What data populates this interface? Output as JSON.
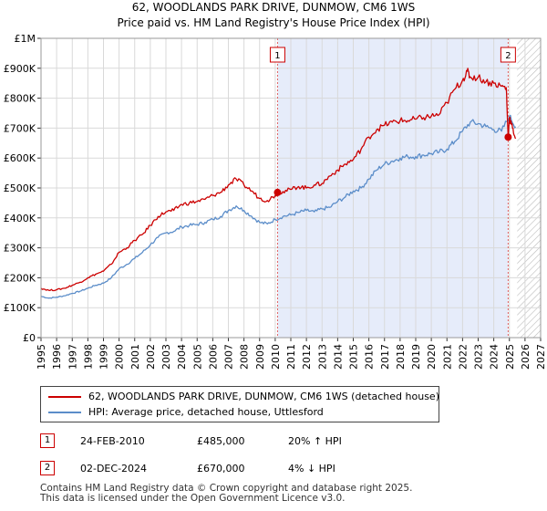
{
  "chart_data": {
    "type": "line",
    "title": "62, WOODLANDS PARK DRIVE, DUNMOW, CM6 1WS",
    "subtitle": "Price paid vs. HM Land Registry's House Price Index (HPI)",
    "xlabel": "",
    "ylabel": "",
    "xlim": [
      1995,
      2027
    ],
    "ylim": [
      0,
      1000000
    ],
    "y_ticks": [
      0,
      100000,
      200000,
      300000,
      400000,
      500000,
      600000,
      700000,
      800000,
      900000,
      1000000
    ],
    "y_tick_labels": [
      "£0",
      "£100K",
      "£200K",
      "£300K",
      "£400K",
      "£500K",
      "£600K",
      "£700K",
      "£800K",
      "£900K",
      "£1M"
    ],
    "x_ticks": [
      1995,
      1996,
      1997,
      1998,
      1999,
      2000,
      2001,
      2002,
      2003,
      2004,
      2005,
      2006,
      2007,
      2008,
      2009,
      2010,
      2011,
      2012,
      2013,
      2014,
      2015,
      2016,
      2017,
      2018,
      2019,
      2020,
      2021,
      2022,
      2023,
      2024,
      2025,
      2026,
      2027
    ],
    "x_tick_labels": [
      "1995",
      "1996",
      "1997",
      "1998",
      "1999",
      "2000",
      "2001",
      "2002",
      "2003",
      "2004",
      "2005",
      "2006",
      "2007",
      "2008",
      "2009",
      "2010",
      "2011",
      "2012",
      "2013",
      "2014",
      "2015",
      "2016",
      "2017",
      "2018",
      "2019",
      "2020",
      "2021",
      "2022",
      "2023",
      "2024",
      "2025",
      "2026",
      "2027"
    ],
    "grid": true,
    "shaded_region": [
      2010.15,
      2024.92
    ],
    "hatched_from": 2025.5,
    "series": [
      {
        "name": "62, WOODLANDS PARK DRIVE, DUNMOW, CM6 1WS (detached house)",
        "color": "#cc0000",
        "x": [
          1995.0,
          1995.5,
          1996.0,
          1996.5,
          1997.0,
          1997.5,
          1998.0,
          1998.5,
          1999.0,
          1999.5,
          2000.0,
          2000.5,
          2001.0,
          2001.5,
          2002.0,
          2002.5,
          2003.0,
          2003.5,
          2004.0,
          2004.5,
          2005.0,
          2005.5,
          2006.0,
          2006.5,
          2007.0,
          2007.5,
          2008.0,
          2008.5,
          2009.0,
          2009.5,
          2010.0,
          2010.15,
          2010.5,
          2011.0,
          2011.5,
          2012.0,
          2012.5,
          2013.0,
          2013.5,
          2014.0,
          2014.5,
          2015.0,
          2015.5,
          2016.0,
          2016.5,
          2017.0,
          2017.5,
          2018.0,
          2018.5,
          2019.0,
          2019.5,
          2020.0,
          2020.5,
          2021.0,
          2021.5,
          2022.0,
          2022.3,
          2022.5,
          2023.0,
          2023.5,
          2024.0,
          2024.5,
          2024.8,
          2024.92,
          2025.0,
          2025.2,
          2025.4
        ],
        "y": [
          165000,
          158000,
          160000,
          165000,
          175000,
          185000,
          200000,
          212000,
          222000,
          245000,
          285000,
          300000,
          325000,
          345000,
          375000,
          405000,
          420000,
          425000,
          445000,
          450000,
          455000,
          462000,
          475000,
          485000,
          510000,
          530000,
          510000,
          490000,
          465000,
          458000,
          475000,
          485000,
          488000,
          495000,
          505000,
          500000,
          510000,
          515000,
          540000,
          560000,
          580000,
          595000,
          630000,
          670000,
          695000,
          710000,
          720000,
          725000,
          725000,
          730000,
          735000,
          740000,
          745000,
          785000,
          830000,
          860000,
          890000,
          870000,
          870000,
          855000,
          850000,
          840000,
          835000,
          670000,
          735000,
          700000,
          665000
        ]
      },
      {
        "name": "HPI: Average price, detached house, Uttlesford",
        "color": "#5b8dc9",
        "x": [
          1995.0,
          1995.5,
          1996.0,
          1996.5,
          1997.0,
          1997.5,
          1998.0,
          1998.5,
          1999.0,
          1999.5,
          2000.0,
          2000.5,
          2001.0,
          2001.5,
          2002.0,
          2002.5,
          2003.0,
          2003.5,
          2004.0,
          2004.5,
          2005.0,
          2005.5,
          2006.0,
          2006.5,
          2007.0,
          2007.5,
          2008.0,
          2008.5,
          2009.0,
          2009.5,
          2010.0,
          2010.5,
          2011.0,
          2011.5,
          2012.0,
          2012.5,
          2013.0,
          2013.5,
          2014.0,
          2014.5,
          2015.0,
          2015.5,
          2016.0,
          2016.5,
          2017.0,
          2017.5,
          2018.0,
          2018.5,
          2019.0,
          2019.5,
          2020.0,
          2020.5,
          2021.0,
          2021.5,
          2022.0,
          2022.5,
          2023.0,
          2023.5,
          2024.0,
          2024.5,
          2025.0,
          2025.4
        ],
        "y": [
          138000,
          132000,
          135000,
          140000,
          148000,
          155000,
          165000,
          175000,
          182000,
          200000,
          230000,
          245000,
          265000,
          285000,
          310000,
          335000,
          350000,
          355000,
          370000,
          375000,
          378000,
          385000,
          395000,
          405000,
          425000,
          440000,
          425000,
          405000,
          385000,
          380000,
          395000,
          405000,
          410000,
          418000,
          425000,
          420000,
          430000,
          435000,
          455000,
          470000,
          490000,
          500000,
          530000,
          560000,
          580000,
          590000,
          600000,
          605000,
          605000,
          610000,
          615000,
          620000,
          630000,
          655000,
          690000,
          720000,
          715000,
          705000,
          695000,
          690000,
          740000,
          705000
        ]
      }
    ],
    "annotations": [
      {
        "label": "1",
        "x": 2010.15,
        "y": 485000
      },
      {
        "label": "2",
        "x": 2024.92,
        "y": 670000
      }
    ]
  },
  "legend": {
    "items": [
      {
        "label": "62, WOODLANDS PARK DRIVE, DUNMOW, CM6 1WS (detached house)",
        "color": "#cc0000"
      },
      {
        "label": "HPI: Average price, detached house, Uttlesford",
        "color": "#5b8dc9"
      }
    ]
  },
  "sales": [
    {
      "num": "1",
      "date": "24-FEB-2010",
      "price": "£485,000",
      "hpi": "20% ↑ HPI"
    },
    {
      "num": "2",
      "date": "02-DEC-2024",
      "price": "£670,000",
      "hpi": "4% ↓ HPI"
    }
  ],
  "footer": {
    "line1": "Contains HM Land Registry data © Crown copyright and database right 2025.",
    "line2": "This data is licensed under the Open Government Licence v3.0."
  }
}
